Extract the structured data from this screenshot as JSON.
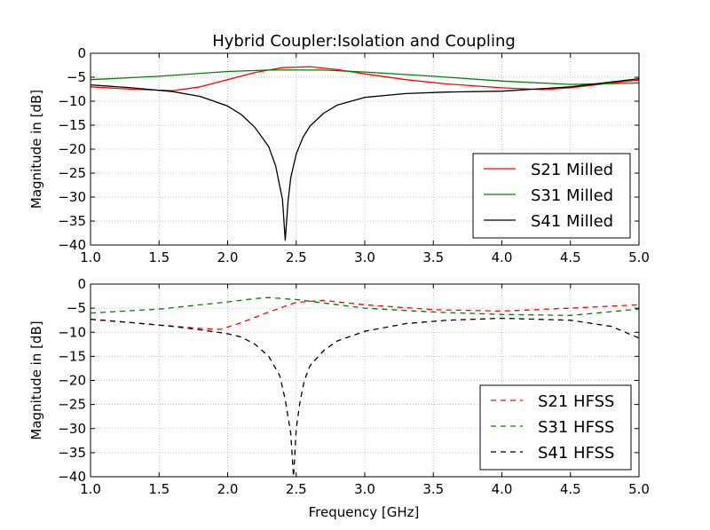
{
  "figure": {
    "title": "Hybrid Coupler:Isolation and Coupling",
    "xlabel": "Frequency [GHz]"
  },
  "chart_data": [
    {
      "type": "line",
      "title": "Hybrid Coupler:Isolation and Coupling",
      "xlabel": "",
      "ylabel": "Magnitude in [dB]",
      "xlim": [
        1.0,
        5.0
      ],
      "ylim": [
        -40,
        0
      ],
      "xticks": [
        "1.0",
        "1.5",
        "2.0",
        "2.5",
        "3.0",
        "3.5",
        "4.0",
        "4.5",
        "5.0"
      ],
      "yticks": [
        "0",
        "−5",
        "−10",
        "−15",
        "−20",
        "−25",
        "−30",
        "−35",
        "−40"
      ],
      "grid": true,
      "legend": "lower-right",
      "series": [
        {
          "name": "S21 Milled",
          "color": "#ff0000",
          "style": "solid",
          "x": [
            1.0,
            1.3,
            1.6,
            1.8,
            2.0,
            2.2,
            2.4,
            2.6,
            2.8,
            3.0,
            3.3,
            3.6,
            4.0,
            4.3,
            4.5,
            4.8,
            5.0
          ],
          "y": [
            -7.0,
            -7.5,
            -7.8,
            -7.0,
            -5.5,
            -4.0,
            -3.0,
            -2.8,
            -3.4,
            -4.3,
            -5.5,
            -6.4,
            -7.2,
            -7.6,
            -7.2,
            -6.2,
            -5.6
          ]
        },
        {
          "name": "S31 Milled",
          "color": "#008000",
          "style": "solid",
          "x": [
            1.0,
            1.5,
            2.0,
            2.3,
            2.7,
            3.0,
            3.5,
            4.0,
            4.5,
            5.0
          ],
          "y": [
            -5.5,
            -4.8,
            -3.8,
            -3.5,
            -3.5,
            -3.9,
            -4.8,
            -5.8,
            -6.5,
            -6.2
          ]
        },
        {
          "name": "S41 Milled",
          "color": "#000000",
          "style": "solid",
          "x": [
            1.0,
            1.3,
            1.6,
            1.8,
            2.0,
            2.1,
            2.2,
            2.3,
            2.35,
            2.4,
            2.42,
            2.44,
            2.46,
            2.5,
            2.55,
            2.6,
            2.7,
            2.8,
            3.0,
            3.3,
            3.6,
            4.0,
            4.5,
            5.0
          ],
          "y": [
            -6.6,
            -7.2,
            -8.0,
            -9.0,
            -11.0,
            -12.8,
            -15.5,
            -19.5,
            -23.5,
            -30.5,
            -39.0,
            -31.0,
            -26.0,
            -21.0,
            -17.5,
            -15.2,
            -12.5,
            -10.8,
            -9.2,
            -8.4,
            -8.1,
            -7.9,
            -7.0,
            -5.3
          ]
        }
      ]
    },
    {
      "type": "line",
      "title": "",
      "xlabel": "Frequency [GHz]",
      "ylabel": "Magnitude in [dB]",
      "xlim": [
        1.0,
        5.0
      ],
      "ylim": [
        -40,
        0
      ],
      "xticks": [
        "1.0",
        "1.5",
        "2.0",
        "2.5",
        "3.0",
        "3.5",
        "4.0",
        "4.5",
        "5.0"
      ],
      "yticks": [
        "0",
        "−5",
        "−10",
        "−15",
        "−20",
        "−25",
        "−30",
        "−35",
        "−40"
      ],
      "grid": true,
      "legend": "lower-right",
      "series": [
        {
          "name": "S21 HFSS",
          "color": "#ff0000",
          "style": "dashed",
          "x": [
            1.0,
            1.5,
            1.8,
            1.95,
            2.1,
            2.3,
            2.5,
            2.7,
            3.0,
            3.5,
            4.0,
            4.5,
            5.0
          ],
          "y": [
            -7.3,
            -8.5,
            -9.2,
            -9.4,
            -8.0,
            -5.8,
            -3.8,
            -3.4,
            -4.3,
            -5.3,
            -5.6,
            -5.0,
            -4.3
          ]
        },
        {
          "name": "S31 HFSS",
          "color": "#008000",
          "style": "dashed",
          "x": [
            1.0,
            1.5,
            2.0,
            2.2,
            2.3,
            2.5,
            3.0,
            3.5,
            4.0,
            4.5,
            5.0
          ],
          "y": [
            -6.0,
            -5.2,
            -3.7,
            -3.0,
            -2.8,
            -3.2,
            -5.0,
            -5.8,
            -6.3,
            -6.5,
            -5.2
          ]
        },
        {
          "name": "S41 HFSS",
          "color": "#000000",
          "style": "dashed",
          "x": [
            1.0,
            1.3,
            1.6,
            1.8,
            2.0,
            2.1,
            2.2,
            2.3,
            2.38,
            2.42,
            2.46,
            2.48,
            2.5,
            2.53,
            2.56,
            2.6,
            2.7,
            2.8,
            3.0,
            3.3,
            3.6,
            4.0,
            4.5,
            4.8,
            5.0
          ],
          "y": [
            -7.3,
            -8.0,
            -8.8,
            -9.5,
            -10.3,
            -11.0,
            -12.5,
            -15.0,
            -19.0,
            -24.0,
            -31.0,
            -40.0,
            -30.0,
            -24.0,
            -20.0,
            -17.0,
            -13.8,
            -11.8,
            -9.8,
            -8.2,
            -7.5,
            -7.1,
            -7.5,
            -8.8,
            -11.2
          ]
        }
      ]
    }
  ]
}
